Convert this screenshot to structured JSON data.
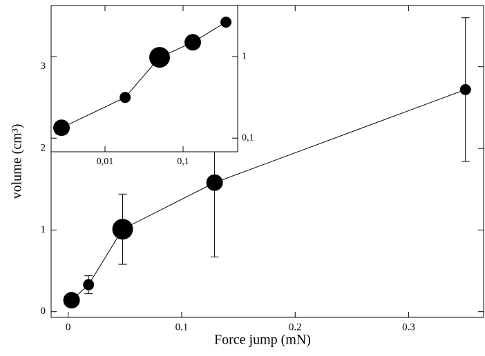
{
  "chart_data": [
    {
      "type": "scatter",
      "line": true,
      "color": "#000000",
      "xlabel": "Force jump (mN)",
      "ylabel": "volume  (cm³)",
      "x": [
        0.003,
        0.018,
        0.048,
        0.129,
        0.35
      ],
      "y": [
        0.14,
        0.33,
        1.01,
        1.58,
        2.72
      ],
      "errors": [
        null,
        0.11,
        0.43,
        0.91,
        0.88
      ],
      "sizes": [
        12,
        8,
        15,
        12,
        8
      ],
      "xlim": [
        -0.015,
        0.366
      ],
      "ylim": [
        -0.07,
        3.75
      ],
      "xticks": [
        0,
        0.1,
        0.2,
        0.3
      ],
      "yticks": [
        0,
        1,
        2,
        3
      ],
      "y_tick_side": "left",
      "log_x": false,
      "log_y": false
    },
    {
      "type": "scatter",
      "line": true,
      "color": "#000000",
      "x": [
        0.00277,
        0.0181,
        0.05,
        0.133,
        0.354
      ],
      "y": [
        0.134,
        0.316,
        0.98,
        1.5,
        2.65
      ],
      "sizes": [
        12,
        8,
        15,
        12,
        8
      ],
      "xlim": [
        0.00204,
        0.5
      ],
      "ylim": [
        0.068,
        4.24
      ],
      "xticks": [
        {
          "value": 0.01,
          "label": "0,01"
        },
        {
          "value": 0.1,
          "label": "0,1"
        }
      ],
      "yticks": [
        {
          "value": 0.1,
          "label": "0,1"
        },
        1
      ],
      "y_tick_side": "right",
      "log_x": true,
      "log_y": true
    }
  ]
}
